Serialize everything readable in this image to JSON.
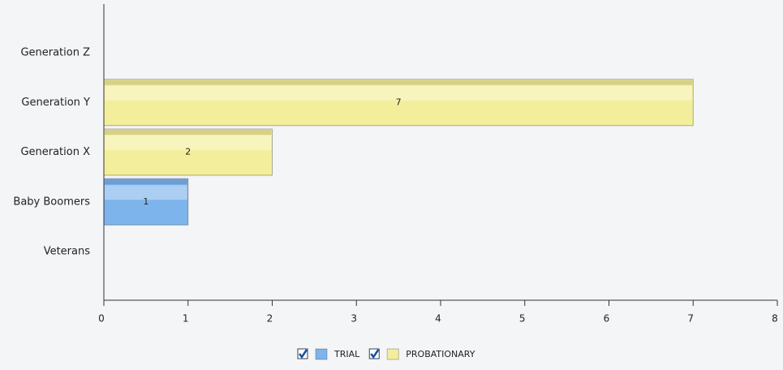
{
  "chart_data": {
    "type": "bar",
    "orientation": "horizontal",
    "categories": [
      "Generation Z",
      "Generation Y",
      "Generation X",
      "Baby Boomers",
      "Veterans"
    ],
    "series": [
      {
        "name": "TRIAL",
        "color": "#7eb4ec",
        "values": [
          null,
          null,
          null,
          1,
          null
        ]
      },
      {
        "name": "PROBATIONARY",
        "color": "#f3ee9c",
        "values": [
          null,
          7,
          2,
          null,
          null
        ]
      }
    ],
    "xlim": [
      0,
      8
    ],
    "xticks": [
      0,
      1,
      2,
      3,
      4,
      5,
      6,
      7,
      8
    ]
  }
}
